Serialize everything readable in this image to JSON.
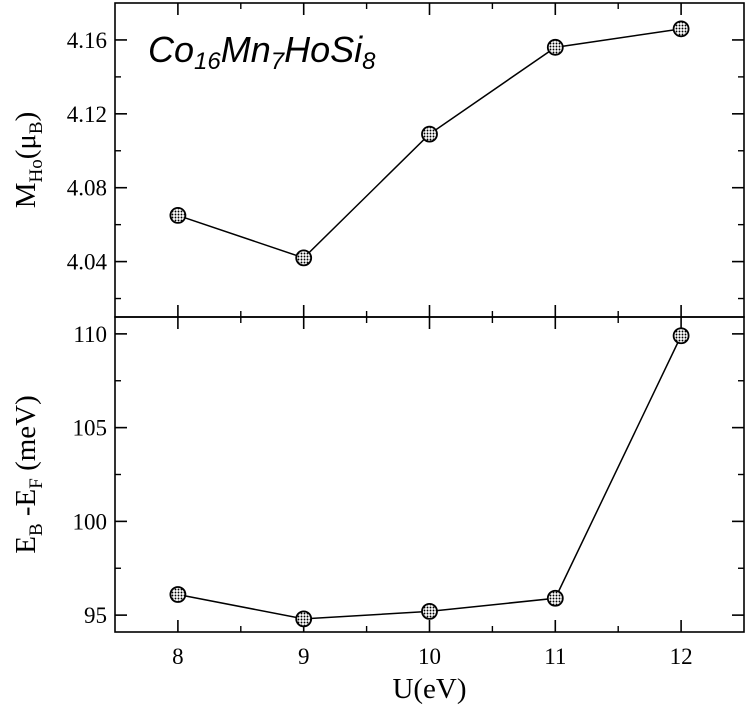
{
  "chart_data": [
    {
      "type": "line",
      "panel": "top",
      "title_parts": [
        {
          "t": "Co",
          "sub": false
        },
        {
          "t": "16",
          "sub": true
        },
        {
          "t": "Mn",
          "sub": false
        },
        {
          "t": "7",
          "sub": true
        },
        {
          "t": "HoSi",
          "sub": false
        },
        {
          "t": "8",
          "sub": true
        }
      ],
      "ylabel_parts": [
        {
          "t": "M",
          "sub": false
        },
        {
          "t": "Ho",
          "sub": true
        },
        {
          "t": "(μ",
          "sub": false
        },
        {
          "t": "B",
          "sub": true
        },
        {
          "t": ")",
          "sub": false
        }
      ],
      "x": [
        8,
        9,
        10,
        11,
        12
      ],
      "values": [
        4.065,
        4.042,
        4.109,
        4.156,
        4.166
      ],
      "xlim": [
        7.5,
        12.5
      ],
      "ylim": [
        4.01,
        4.18
      ],
      "yticks": [
        4.04,
        4.08,
        4.12,
        4.16
      ],
      "ytick_labels": [
        "4.04",
        "4.08",
        "4.12",
        "4.16"
      ],
      "grid": false
    },
    {
      "type": "line",
      "panel": "bottom",
      "ylabel_parts": [
        {
          "t": "E",
          "sub": false
        },
        {
          "t": "B",
          "sub": true
        },
        {
          "t": " -E",
          "sub": false
        },
        {
          "t": "F",
          "sub": true
        },
        {
          "t": " (meV)",
          "sub": false
        }
      ],
      "xlabel": "U(eV)",
      "x": [
        8,
        9,
        10,
        11,
        12
      ],
      "values": [
        96.1,
        94.8,
        95.2,
        95.9,
        109.9
      ],
      "xlim": [
        7.5,
        12.5
      ],
      "ylim": [
        94.1,
        110.9
      ],
      "xticks": [
        8,
        9,
        10,
        11,
        12
      ],
      "xtick_labels": [
        "8",
        "9",
        "10",
        "11",
        "12"
      ],
      "yticks": [
        95,
        100,
        105,
        110
      ],
      "ytick_labels": [
        "95",
        "100",
        "105",
        "110"
      ],
      "grid": false
    }
  ]
}
